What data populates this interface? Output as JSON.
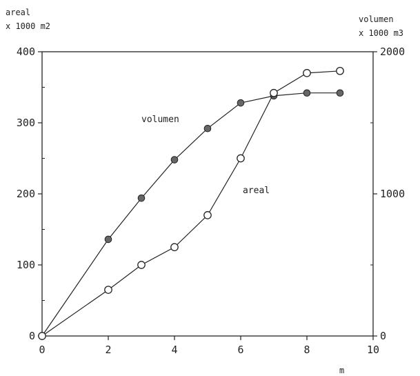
{
  "chart_data": {
    "type": "line",
    "left_axis_label_1": "areal",
    "left_axis_label_2": "x 1000 m2",
    "right_axis_label_1": "volumen",
    "right_axis_label_2": "x 1000 m3",
    "xlabel": "m",
    "xlim": [
      0,
      10
    ],
    "ylim_left": [
      0,
      400
    ],
    "ylim_right": [
      0,
      2000
    ],
    "x_ticks": [
      0,
      2,
      4,
      6,
      8,
      10
    ],
    "y_left_ticks": [
      0,
      100,
      200,
      300,
      400
    ],
    "y_right_ticks": [
      0,
      1000,
      2000
    ],
    "grid": false,
    "series": [
      {
        "name": "volumen",
        "axis": "right",
        "marker": "filled-circle",
        "x": [
          0,
          2,
          3,
          4,
          5,
          6,
          7,
          8,
          9
        ],
        "y": [
          0,
          680,
          970,
          1240,
          1460,
          1640,
          1690,
          1710,
          1710
        ]
      },
      {
        "name": "areal",
        "axis": "left",
        "marker": "open-circle",
        "x": [
          0,
          2,
          3,
          4,
          5,
          6,
          7,
          8,
          9
        ],
        "y": [
          0,
          65,
          100,
          125,
          170,
          250,
          342,
          370,
          373
        ]
      }
    ]
  }
}
